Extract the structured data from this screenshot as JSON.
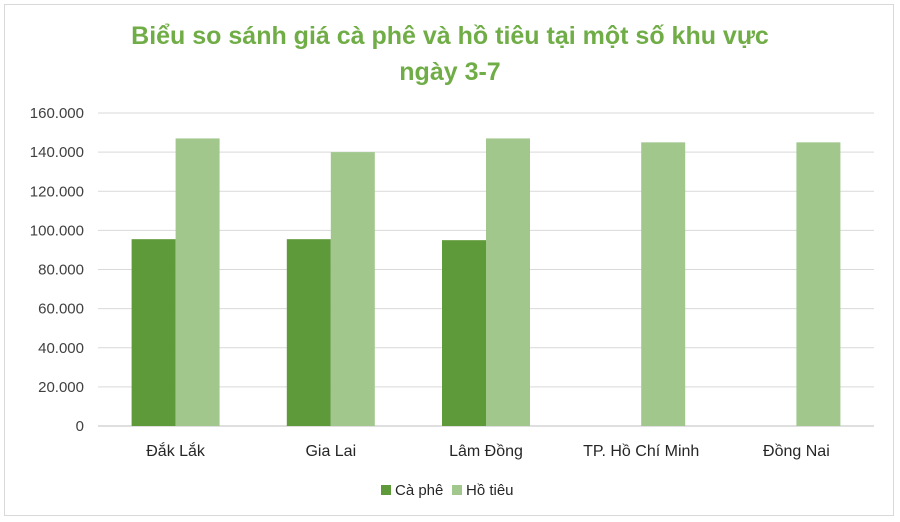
{
  "chart_data": {
    "type": "bar",
    "title_line1": "Biểu so sánh giá cà phê và hồ tiêu tại một số khu vực",
    "title_line2": "ngày 3-7",
    "xlabel": "",
    "ylabel": "",
    "categories": [
      "Đắk Lắk",
      "Gia Lai",
      "Lâm Đồng",
      "TP. Hồ Chí Minh",
      "Đồng Nai"
    ],
    "series": [
      {
        "name": "Cà phê",
        "color": "#5f9a3a",
        "values": [
          95500,
          95500,
          95000,
          null,
          null
        ]
      },
      {
        "name": "Hồ tiêu",
        "color": "#a1c78c",
        "values": [
          147000,
          140000,
          147000,
          145000,
          145000
        ]
      }
    ],
    "ylim": [
      0,
      160000
    ],
    "ytick_labels": [
      "0",
      "20.000",
      "40.000",
      "60.000",
      "80.000",
      "100.000",
      "120.000",
      "140.000",
      "160.000"
    ],
    "grid": true,
    "legend_position": "bottom"
  }
}
